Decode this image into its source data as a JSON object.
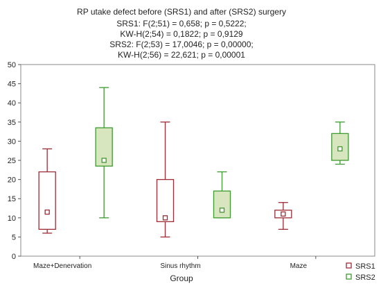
{
  "chart_data": {
    "type": "box",
    "title": "RP utake defect before (SRS1) and after (SRS2) surgery",
    "subtitle_lines": [
      "SRS1:   F(2;51) = 0,658; p = 0,5222;",
      "KW-H(2;54) = 0,1822; p = 0,9129",
      "SRS2:   F(2;53) = 17,0046; p = 0,00000;",
      "KW-H(2;56) = 22,621; p = 0,00001"
    ],
    "xlabel": "Group",
    "ylabel": "",
    "ylim": [
      0,
      50
    ],
    "yticks": [
      0,
      5,
      10,
      15,
      20,
      25,
      30,
      35,
      40,
      45,
      50
    ],
    "categories": [
      "Maze+Denervation",
      "Sinus rhythm",
      "Maze"
    ],
    "legend_position": "bottom-right",
    "series": [
      {
        "name": "SRS1",
        "color": "#9b2b35",
        "fill": "#ffffff",
        "boxes": [
          {
            "median": 11.5,
            "q1": 7,
            "q3": 22,
            "min": 6,
            "max": 28
          },
          {
            "median": 10,
            "q1": 9,
            "q3": 20,
            "min": 5,
            "max": 35
          },
          {
            "median": 11,
            "q1": 10,
            "q3": 12,
            "min": 7,
            "max": 14
          }
        ]
      },
      {
        "name": "SRS2",
        "color": "#3c9a2e",
        "fill": "#d8e6bf",
        "boxes": [
          {
            "median": 25,
            "q1": 23.5,
            "q3": 33.5,
            "min": 10,
            "max": 44
          },
          {
            "median": 12,
            "q1": 10,
            "q3": 17,
            "min": 10,
            "max": 22
          },
          {
            "median": 28,
            "q1": 25,
            "q3": 32,
            "min": 24,
            "max": 35
          }
        ]
      }
    ]
  }
}
